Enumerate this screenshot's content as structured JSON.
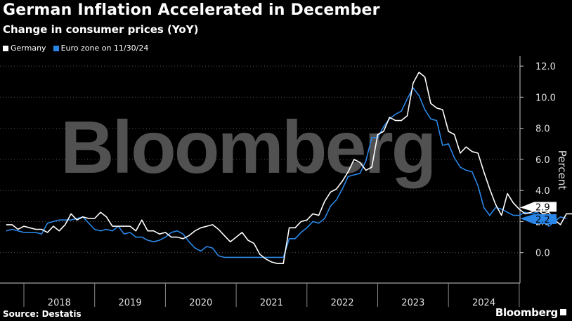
{
  "header": {
    "title": "German Inflation Accelerated in December",
    "subtitle": "Change in consumer prices (YoY)"
  },
  "legend": {
    "items": [
      {
        "label": "Germany",
        "color": "#ffffff"
      },
      {
        "label": "Euro zone on 11/30/24",
        "color": "#2a86e6"
      }
    ]
  },
  "footer": {
    "source": "Source: Destatis",
    "brand": "Bloomberg"
  },
  "watermark": "Bloomberg",
  "chart_data": {
    "type": "line",
    "ylabel": "Percent",
    "ylim": [
      -2.0,
      12.5
    ],
    "yticks": [
      "12.0",
      "10.0",
      "8.0",
      "6.0",
      "4.0",
      "2.0",
      "0.0"
    ],
    "ytick_values": [
      12,
      10,
      8,
      6,
      4,
      2,
      0
    ],
    "xticks": [
      "2018",
      "2019",
      "2020",
      "2021",
      "2022",
      "2023",
      "2024"
    ],
    "x_start": "2017-10",
    "grid": "horizontal dashed",
    "series": [
      {
        "name": "Germany",
        "color": "#ffffff",
        "last_label": "2.9",
        "values": [
          1.8,
          1.8,
          1.5,
          1.7,
          1.6,
          1.5,
          1.5,
          1.3,
          1.7,
          1.4,
          1.8,
          2.5,
          2.1,
          2.3,
          2.2,
          2.2,
          2.6,
          2.3,
          1.7,
          1.7,
          1.7,
          1.7,
          1.4,
          2.1,
          1.4,
          1.4,
          1.2,
          1.3,
          1.0,
          1.0,
          0.9,
          1.1,
          1.4,
          1.6,
          1.7,
          1.8,
          1.5,
          1.1,
          0.7,
          1.0,
          1.3,
          0.8,
          0.6,
          -0.1,
          -0.4,
          -0.6,
          -0.7,
          -0.7,
          1.6,
          1.6,
          2.0,
          2.1,
          2.5,
          2.4,
          3.3,
          3.9,
          4.1,
          4.6,
          5.2,
          6.0,
          5.8,
          5.3,
          5.5,
          7.6,
          7.8,
          8.7,
          8.5,
          8.5,
          8.8,
          10.9,
          11.6,
          11.3,
          9.6,
          9.3,
          9.2,
          7.8,
          7.6,
          6.4,
          6.8,
          6.5,
          6.4,
          5.2,
          4.1,
          3.1,
          2.4,
          3.8,
          3.2,
          2.8,
          2.5,
          2.6,
          2.8,
          2.5,
          2.6,
          2.1,
          1.8,
          2.5,
          2.5,
          2.9
        ]
      },
      {
        "name": "Euro zone on 11/30/24",
        "color": "#2a86e6",
        "last_label": "2.2",
        "values": [
          1.4,
          1.5,
          1.4,
          1.3,
          1.3,
          1.3,
          1.2,
          1.9,
          2.0,
          2.1,
          2.1,
          2.1,
          2.2,
          2.3,
          1.9,
          1.5,
          1.4,
          1.5,
          1.4,
          1.7,
          1.2,
          1.3,
          1.0,
          1.0,
          0.8,
          0.7,
          0.8,
          1.0,
          1.3,
          1.4,
          1.2,
          0.7,
          0.3,
          0.1,
          0.4,
          0.3,
          -0.2,
          -0.3,
          -0.3,
          -0.3,
          -0.3,
          -0.3,
          -0.3,
          -0.3,
          -0.3,
          -0.3,
          -0.3,
          -0.3,
          0.9,
          0.9,
          1.3,
          1.6,
          2.0,
          1.9,
          2.2,
          3.0,
          3.4,
          4.1,
          4.9,
          5.0,
          5.1,
          5.9,
          7.4,
          7.4,
          8.1,
          8.6,
          8.9,
          9.1,
          9.9,
          10.6,
          10.1,
          9.2,
          8.6,
          8.5,
          6.9,
          7.0,
          6.1,
          5.5,
          5.3,
          5.2,
          4.3,
          2.9,
          2.4,
          2.9,
          2.8,
          2.6,
          2.4,
          2.4,
          2.6,
          2.5,
          2.6,
          2.2,
          1.7,
          2.0,
          2.3,
          2.2
        ]
      }
    ]
  }
}
